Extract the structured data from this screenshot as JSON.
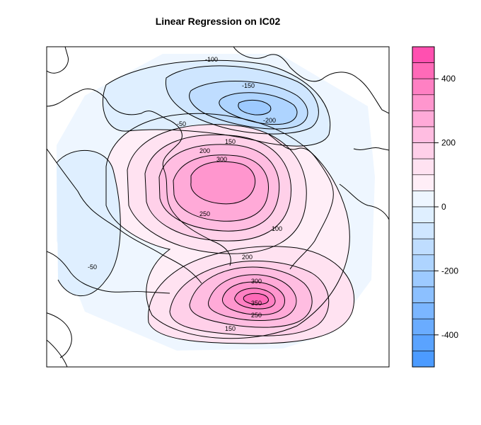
{
  "chart_data": {
    "type": "heatmap",
    "title": "Linear Regression on IC02",
    "projection": "polar-stereographic-north",
    "colorbar": {
      "range": [
        -500,
        500
      ],
      "step": 50,
      "ticks": [
        400,
        200,
        0,
        -200,
        -400
      ],
      "tick_labels": [
        "400",
        "200",
        "0",
        "-200",
        "-400"
      ],
      "colors": [
        "#ff50b0",
        "#ff6ab8",
        "#ff80c3",
        "#ff96ce",
        "#ffaad8",
        "#ffbde1",
        "#ffd0e9",
        "#ffe2f1",
        "#ffeef7",
        "#eef6ff",
        "#dfefff",
        "#cfe6ff",
        "#bfddff",
        "#aed4ff",
        "#9dcaff",
        "#8cc0ff",
        "#7bb6ff",
        "#6aacff",
        "#5aa3ff",
        "#4c9bff"
      ]
    },
    "contour_labels": [
      {
        "text": "-100"
      },
      {
        "text": "-150"
      },
      {
        "text": "-200"
      },
      {
        "text": "-50"
      },
      {
        "text": "150"
      },
      {
        "text": "200"
      },
      {
        "text": "300"
      },
      {
        "text": "250"
      },
      {
        "text": "100"
      },
      {
        "text": "200"
      },
      {
        "text": "300"
      },
      {
        "text": "350"
      },
      {
        "text": "250"
      },
      {
        "text": "150"
      },
      {
        "text": "-50"
      }
    ]
  }
}
